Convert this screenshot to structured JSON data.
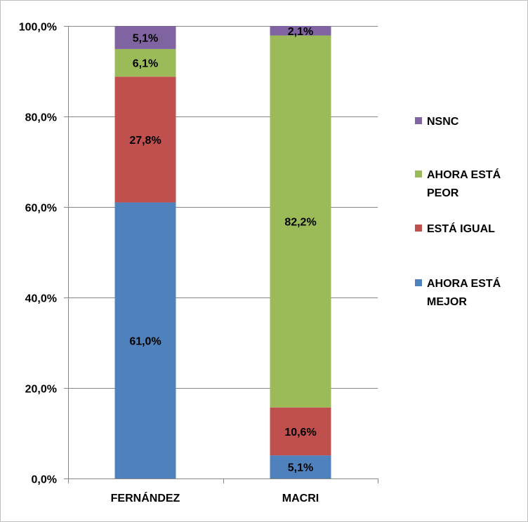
{
  "chart_data": {
    "type": "bar",
    "stacked": true,
    "categories": [
      "FERNÁNDEZ",
      "MACRI"
    ],
    "series": [
      {
        "name": "AHORA ESTÁ MEJOR",
        "color": "#4f81bd",
        "values": [
          61.0,
          5.1
        ],
        "labels": [
          "61,0%",
          "5,1%"
        ]
      },
      {
        "name": "ESTÁ IGUAL",
        "color": "#c0504d",
        "values": [
          27.8,
          10.6
        ],
        "labels": [
          "27,8%",
          "10,6%"
        ]
      },
      {
        "name": "AHORA ESTÁ PEOR",
        "color": "#9bbb59",
        "values": [
          6.1,
          82.2
        ],
        "labels": [
          "6,1%",
          "82,2%"
        ]
      },
      {
        "name": "NSNC",
        "color": "#8064a2",
        "values": [
          5.1,
          2.1
        ],
        "labels": [
          "5,1%",
          "2,1%"
        ]
      }
    ],
    "yticks": [
      0,
      20,
      40,
      60,
      80,
      100
    ],
    "ytick_labels": [
      "0,0%",
      "20,0%",
      "40,0%",
      "60,0%",
      "80,0%",
      "100,0%"
    ],
    "ylim": [
      0,
      100
    ],
    "grid": true,
    "legend_position": "right",
    "legend_order": [
      "NSNC",
      "AHORA ESTÁ PEOR",
      "ESTÁ IGUAL",
      "AHORA ESTÁ MEJOR"
    ],
    "title": "",
    "xlabel": "",
    "ylabel": ""
  }
}
